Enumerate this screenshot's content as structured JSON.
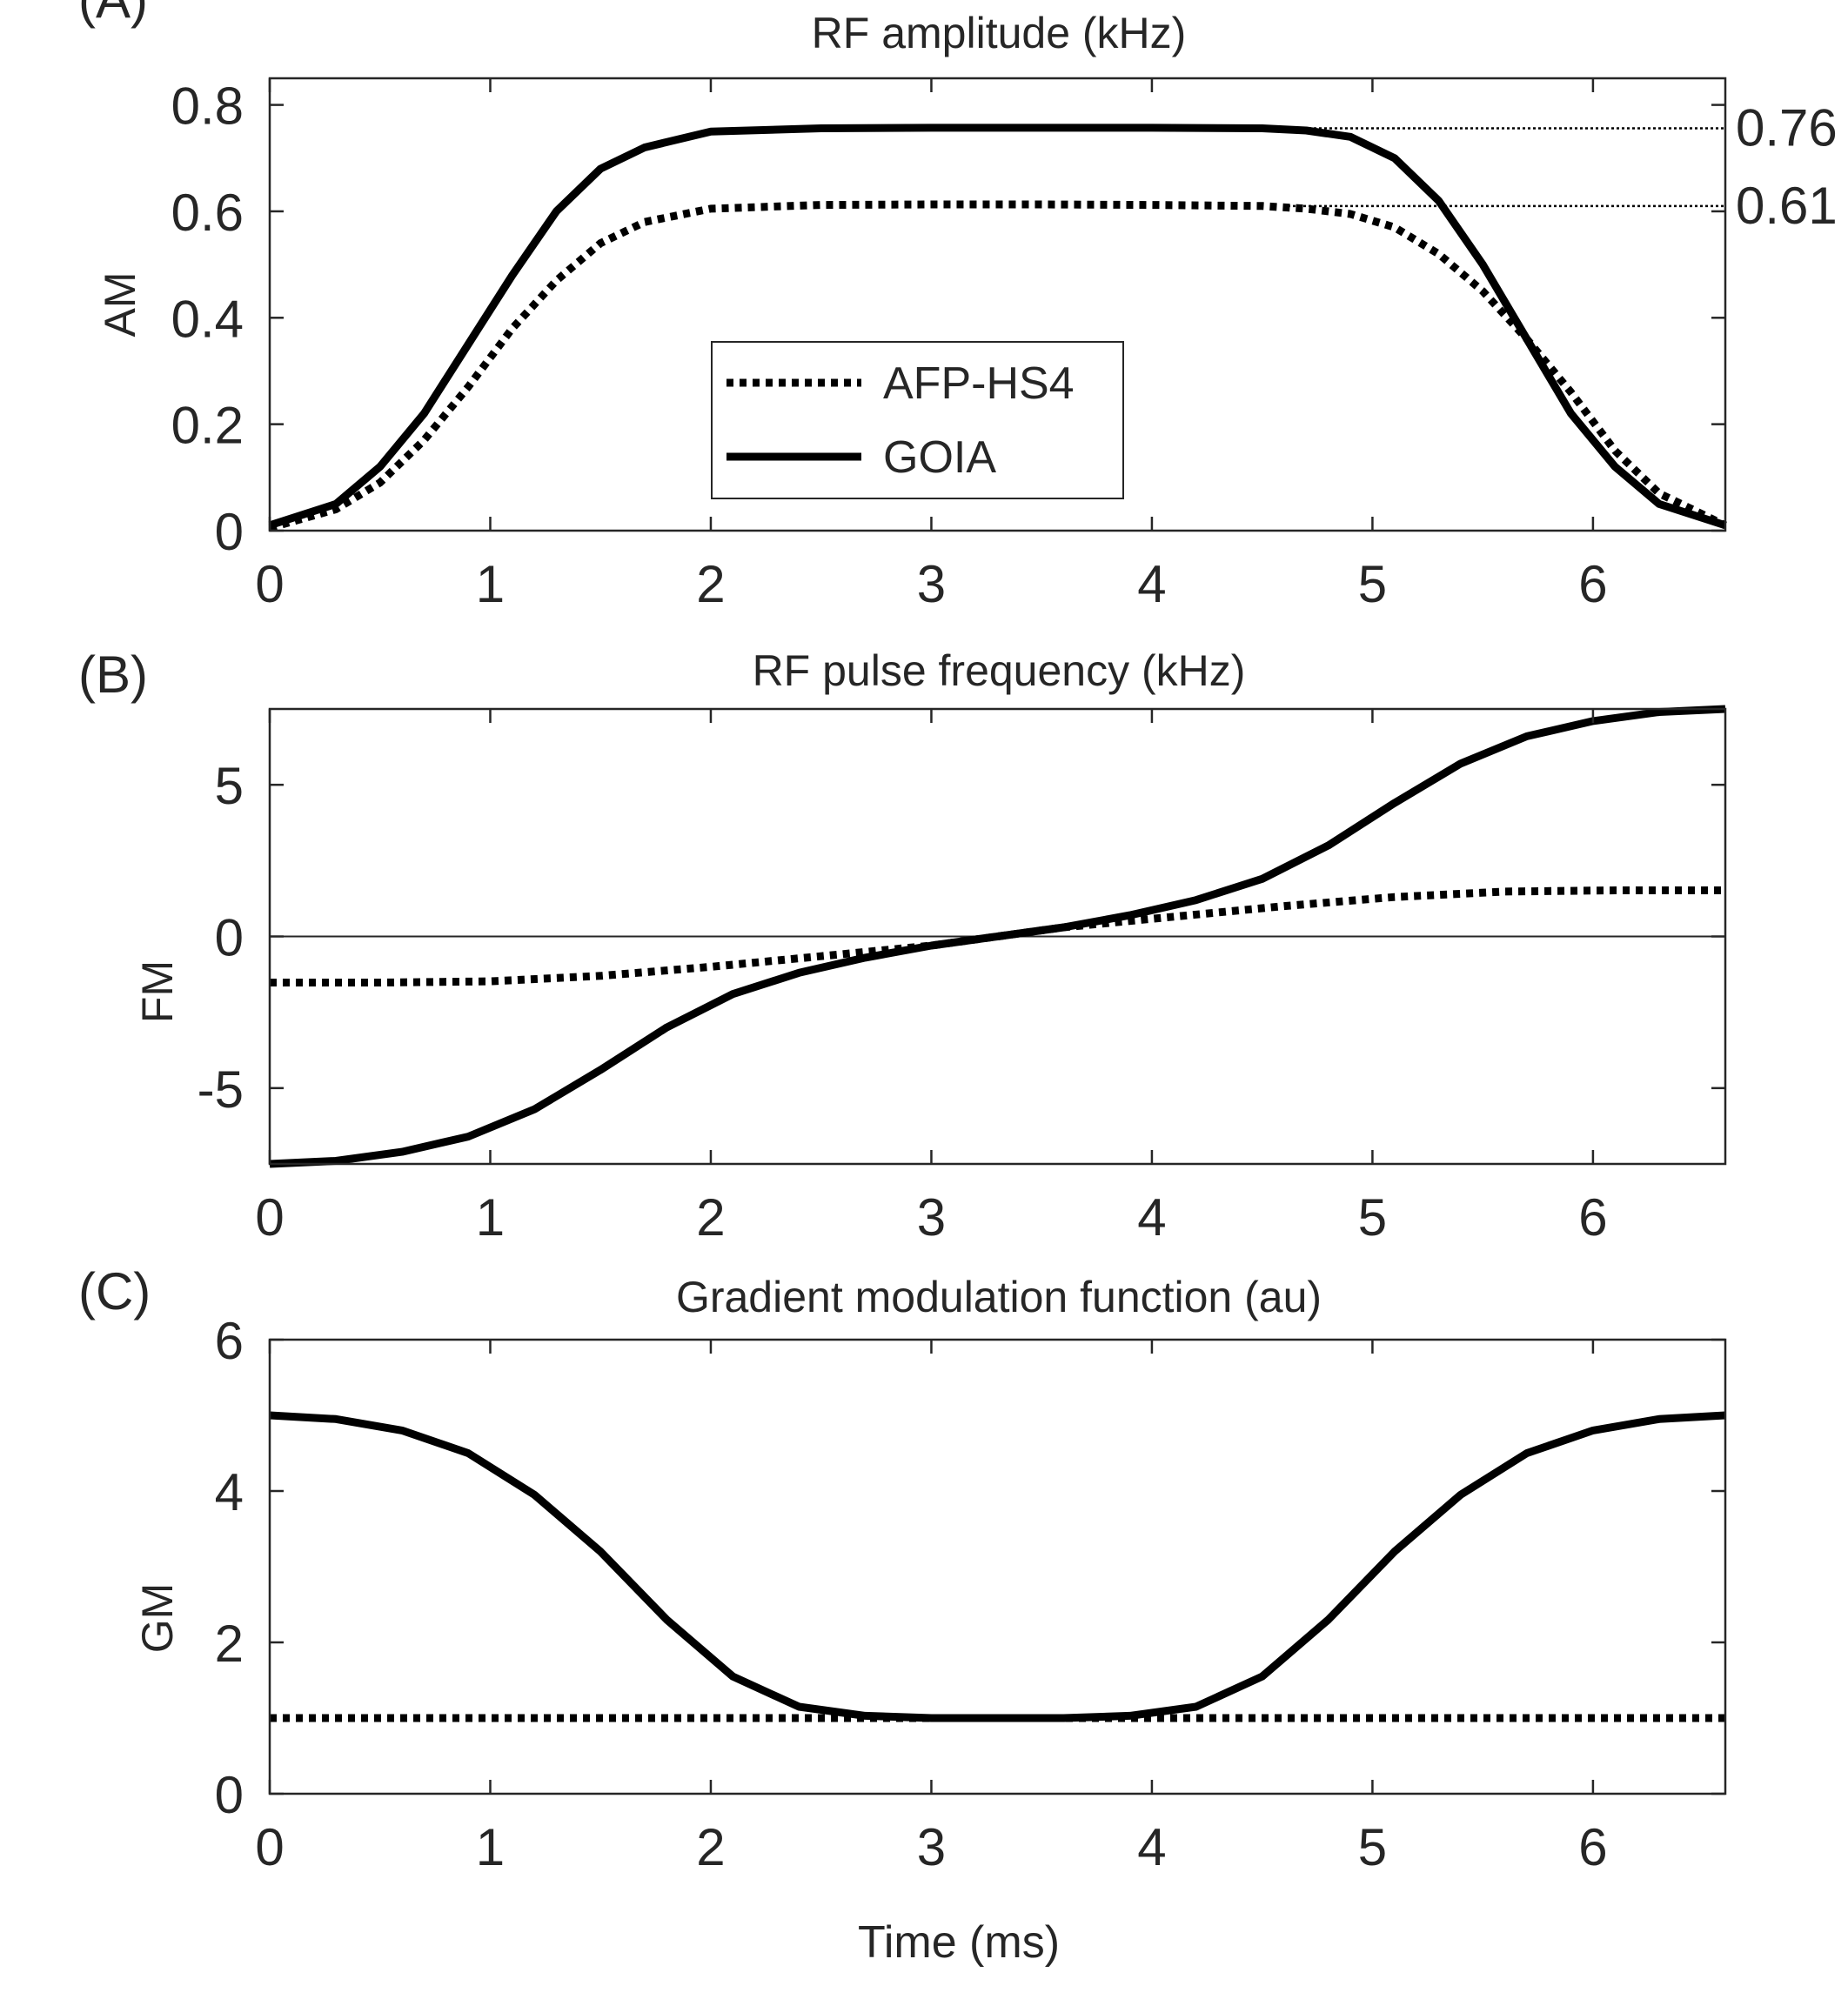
{
  "chart_data": [
    {
      "type": "line",
      "panel_label": "(A)",
      "title": "RF amplitude (kHz)",
      "xlabel": "",
      "ylabel": "AM",
      "xlim": [
        0,
        6.6
      ],
      "ylim": [
        0,
        0.85
      ],
      "x_ticks": [
        "0",
        "1",
        "2",
        "3",
        "4",
        "5",
        "6"
      ],
      "y_ticks": [
        "0",
        "0.2",
        "0.4",
        "0.6",
        "0.8"
      ],
      "legend": {
        "position": "center-left",
        "entries": [
          "AFP-HS4",
          "GOIA"
        ]
      },
      "annotations": [
        {
          "text": "0.76",
          "y": 0.756
        },
        {
          "text": "0.61",
          "y": 0.61
        }
      ],
      "series": [
        {
          "name": "AFP-HS4",
          "style": "dotted",
          "x": [
            0,
            0.3,
            0.5,
            0.7,
            0.9,
            1.1,
            1.3,
            1.5,
            1.7,
            2.0,
            2.5,
            3.0,
            3.5,
            4.0,
            4.5,
            4.7,
            4.9,
            5.1,
            5.3,
            5.5,
            5.7,
            5.9,
            6.1,
            6.3,
            6.6
          ],
          "y": [
            0.005,
            0.04,
            0.09,
            0.17,
            0.27,
            0.38,
            0.47,
            0.54,
            0.58,
            0.605,
            0.612,
            0.613,
            0.613,
            0.612,
            0.61,
            0.605,
            0.595,
            0.57,
            0.52,
            0.45,
            0.36,
            0.26,
            0.15,
            0.07,
            0.01
          ]
        },
        {
          "name": "GOIA",
          "style": "solid",
          "x": [
            0,
            0.3,
            0.5,
            0.7,
            0.9,
            1.1,
            1.3,
            1.5,
            1.7,
            2.0,
            2.5,
            3.0,
            3.5,
            4.0,
            4.5,
            4.7,
            4.9,
            5.1,
            5.3,
            5.5,
            5.7,
            5.9,
            6.1,
            6.3,
            6.6
          ],
          "y": [
            0.01,
            0.05,
            0.12,
            0.22,
            0.35,
            0.48,
            0.6,
            0.68,
            0.72,
            0.75,
            0.756,
            0.757,
            0.757,
            0.757,
            0.756,
            0.752,
            0.74,
            0.7,
            0.62,
            0.5,
            0.36,
            0.22,
            0.12,
            0.05,
            0.01
          ]
        }
      ]
    },
    {
      "type": "line",
      "panel_label": "(B)",
      "title": "RF pulse frequency (kHz)",
      "xlabel": "",
      "ylabel": "FM",
      "xlim": [
        0,
        6.6
      ],
      "ylim": [
        -7.5,
        7.5
      ],
      "x_ticks": [
        "0",
        "1",
        "2",
        "3",
        "4",
        "5",
        "6"
      ],
      "y_ticks": [
        "-5",
        "0",
        "5"
      ],
      "zero_line": true,
      "series": [
        {
          "name": "AFP-HS4",
          "style": "dotted",
          "x": [
            0,
            0.5,
            1.0,
            1.5,
            2.0,
            2.5,
            3.0,
            3.3,
            3.6,
            4.1,
            4.6,
            5.1,
            5.6,
            6.1,
            6.6
          ],
          "y": [
            -1.52,
            -1.52,
            -1.48,
            -1.3,
            -1.0,
            -0.65,
            -0.3,
            0.0,
            0.3,
            0.65,
            1.0,
            1.3,
            1.48,
            1.52,
            1.52
          ]
        },
        {
          "name": "GOIA",
          "style": "solid",
          "x": [
            0,
            0.3,
            0.6,
            0.9,
            1.2,
            1.5,
            1.8,
            2.1,
            2.4,
            2.7,
            3.0,
            3.3,
            3.6,
            3.9,
            4.2,
            4.5,
            4.8,
            5.1,
            5.4,
            5.7,
            6.0,
            6.3,
            6.6
          ],
          "y": [
            -7.5,
            -7.4,
            -7.1,
            -6.6,
            -5.7,
            -4.4,
            -3.0,
            -1.9,
            -1.2,
            -0.7,
            -0.3,
            0.0,
            0.3,
            0.7,
            1.2,
            1.9,
            3.0,
            4.4,
            5.7,
            6.6,
            7.1,
            7.4,
            7.5
          ]
        }
      ]
    },
    {
      "type": "line",
      "panel_label": "(C)",
      "title": "Gradient modulation function (au)",
      "xlabel": "Time (ms)",
      "ylabel": "GM",
      "xlim": [
        0,
        6.6
      ],
      "ylim": [
        0,
        6
      ],
      "x_ticks": [
        "0",
        "1",
        "2",
        "3",
        "4",
        "5",
        "6"
      ],
      "y_ticks": [
        "0",
        "2",
        "4",
        "6"
      ],
      "series": [
        {
          "name": "AFP-HS4",
          "style": "dotted",
          "x": [
            0,
            6.6
          ],
          "y": [
            1.0,
            1.0
          ]
        },
        {
          "name": "GOIA",
          "style": "solid",
          "x": [
            0,
            0.3,
            0.6,
            0.9,
            1.2,
            1.5,
            1.8,
            2.1,
            2.4,
            2.7,
            3.0,
            3.3,
            3.6,
            3.9,
            4.2,
            4.5,
            4.8,
            5.1,
            5.4,
            5.7,
            6.0,
            6.3,
            6.6
          ],
          "y": [
            5.0,
            4.95,
            4.8,
            4.5,
            3.95,
            3.2,
            2.3,
            1.55,
            1.15,
            1.03,
            1.0,
            1.0,
            1.0,
            1.03,
            1.15,
            1.55,
            2.3,
            3.2,
            3.95,
            4.5,
            4.8,
            4.95,
            5.0
          ]
        }
      ]
    }
  ]
}
